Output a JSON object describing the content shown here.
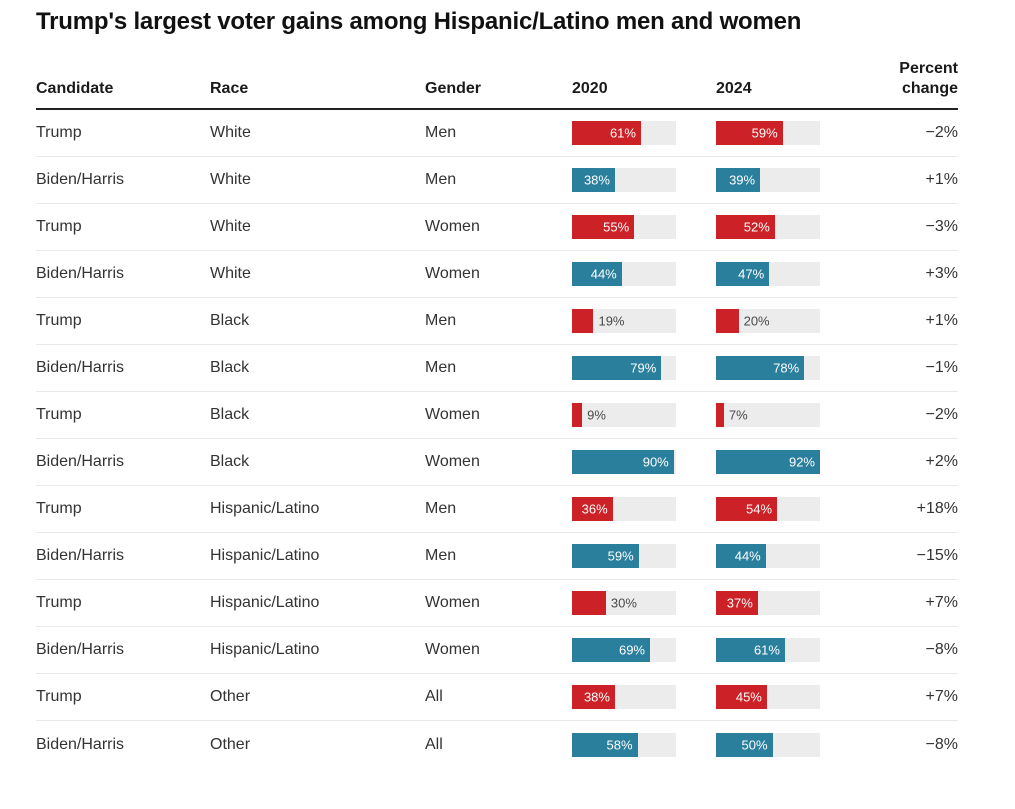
{
  "title": "Trump's largest voter gains among Hispanic/Latino men and women",
  "chart_data": {
    "type": "bar",
    "title": "Trump's largest voter gains among Hispanic/Latino men and women",
    "columns": [
      "Candidate",
      "Race",
      "Gender",
      "2020",
      "2024",
      "Percent change"
    ],
    "bar_scale_max": 92,
    "bar_axis_range": [
      0,
      92
    ],
    "legend": "none",
    "grid": "off",
    "rows": [
      {
        "candidate": "Trump",
        "race": "White",
        "gender": "Men",
        "y2020": 61,
        "y2024": 59,
        "change": "−2%"
      },
      {
        "candidate": "Biden/Harris",
        "race": "White",
        "gender": "Men",
        "y2020": 38,
        "y2024": 39,
        "change": "+1%"
      },
      {
        "candidate": "Trump",
        "race": "White",
        "gender": "Women",
        "y2020": 55,
        "y2024": 52,
        "change": "−3%"
      },
      {
        "candidate": "Biden/Harris",
        "race": "White",
        "gender": "Women",
        "y2020": 44,
        "y2024": 47,
        "change": "+3%"
      },
      {
        "candidate": "Trump",
        "race": "Black",
        "gender": "Men",
        "y2020": 19,
        "y2024": 20,
        "change": "+1%"
      },
      {
        "candidate": "Biden/Harris",
        "race": "Black",
        "gender": "Men",
        "y2020": 79,
        "y2024": 78,
        "change": "−1%"
      },
      {
        "candidate": "Trump",
        "race": "Black",
        "gender": "Women",
        "y2020": 9,
        "y2024": 7,
        "change": "−2%"
      },
      {
        "candidate": "Biden/Harris",
        "race": "Black",
        "gender": "Women",
        "y2020": 90,
        "y2024": 92,
        "change": "+2%"
      },
      {
        "candidate": "Trump",
        "race": "Hispanic/Latino",
        "gender": "Men",
        "y2020": 36,
        "y2024": 54,
        "change": "+18%"
      },
      {
        "candidate": "Biden/Harris",
        "race": "Hispanic/Latino",
        "gender": "Men",
        "y2020": 59,
        "y2024": 44,
        "change": "−15%"
      },
      {
        "candidate": "Trump",
        "race": "Hispanic/Latino",
        "gender": "Women",
        "y2020": 30,
        "y2024": 37,
        "change": "+7%"
      },
      {
        "candidate": "Biden/Harris",
        "race": "Hispanic/Latino",
        "gender": "Women",
        "y2020": 69,
        "y2024": 61,
        "change": "−8%"
      },
      {
        "candidate": "Trump",
        "race": "Other",
        "gender": "All",
        "y2020": 38,
        "y2024": 45,
        "change": "+7%"
      },
      {
        "candidate": "Biden/Harris",
        "race": "Other",
        "gender": "All",
        "y2020": 58,
        "y2024": 50,
        "change": "−8%"
      }
    ],
    "colors": {
      "trump_bar": "#cb2127",
      "biden_harris_bar": "#2a7f9d",
      "bar_track": "#ececec",
      "title_text": "#111111",
      "body_text": "#333333",
      "inside_bar_label": "#ffffff",
      "outside_bar_label": "#4a4a4a"
    }
  }
}
